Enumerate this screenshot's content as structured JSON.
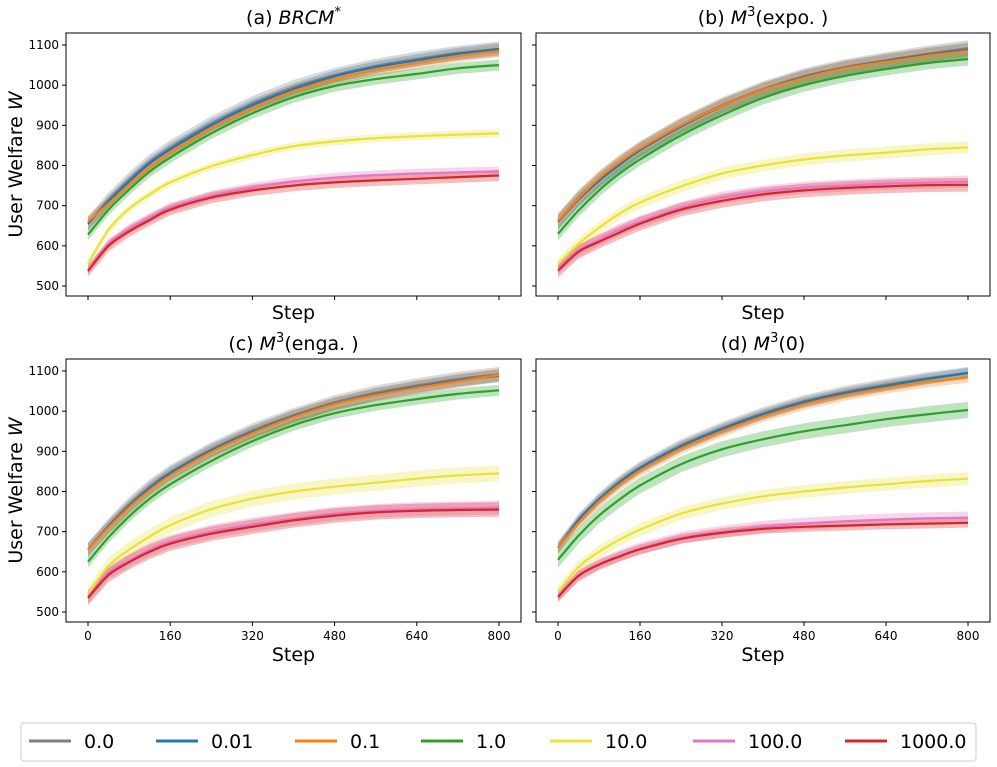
{
  "figure": {
    "ylabel": "User Welfare W",
    "xlabel": "Step"
  },
  "legend": {
    "entries": [
      {
        "label": "0.0",
        "color": "#808080"
      },
      {
        "label": "0.01",
        "color": "#1f77b4"
      },
      {
        "label": "0.1",
        "color": "#ff7f0e"
      },
      {
        "label": "1.0",
        "color": "#2ca02c"
      },
      {
        "label": "10.0",
        "color": "#e8e23a"
      },
      {
        "label": "100.0",
        "color": "#e377c2"
      },
      {
        "label": "1000.0",
        "color": "#d62728"
      }
    ]
  },
  "chart_data": [
    {
      "type": "line",
      "title_prefix": "(a) ",
      "title_italic": "BRCM",
      "title_sup": "*",
      "title_suffix": "",
      "xlabel": "Step",
      "ylabel": "User Welfare W",
      "xlim": [
        0,
        800
      ],
      "ylim": [
        500,
        1100
      ],
      "xticks": [
        0,
        160,
        320,
        480,
        640,
        800
      ],
      "yticks": [
        500,
        600,
        700,
        800,
        900,
        1000,
        1100
      ],
      "show_xtick_labels": false,
      "show_ytick_labels": true,
      "x": [
        0,
        40,
        80,
        120,
        160,
        240,
        320,
        400,
        480,
        560,
        640,
        720,
        800
      ],
      "series": [
        {
          "name": "0.0",
          "values": [
            655,
            715,
            765,
            810,
            845,
            905,
            955,
            995,
            1025,
            1048,
            1065,
            1080,
            1090
          ],
          "band": 18
        },
        {
          "name": "0.01",
          "values": [
            655,
            710,
            760,
            805,
            840,
            900,
            950,
            990,
            1022,
            1045,
            1062,
            1078,
            1090
          ],
          "band": 15
        },
        {
          "name": "0.1",
          "values": [
            660,
            705,
            752,
            795,
            832,
            893,
            943,
            985,
            1015,
            1038,
            1055,
            1072,
            1085
          ],
          "band": 15
        },
        {
          "name": "1.0",
          "values": [
            628,
            690,
            740,
            785,
            820,
            880,
            930,
            970,
            998,
            1015,
            1028,
            1042,
            1050
          ],
          "band": 14
        },
        {
          "name": "10.0",
          "values": [
            555,
            640,
            692,
            728,
            758,
            798,
            826,
            848,
            860,
            868,
            873,
            877,
            880
          ],
          "band": 10
        },
        {
          "name": "100.0",
          "values": [
            540,
            605,
            642,
            670,
            695,
            725,
            745,
            760,
            770,
            776,
            780,
            783,
            785
          ],
          "band": 12
        },
        {
          "name": "1000.0",
          "values": [
            537,
            600,
            636,
            664,
            690,
            720,
            738,
            750,
            758,
            763,
            767,
            771,
            775
          ],
          "band": 14
        }
      ]
    },
    {
      "type": "line",
      "title_prefix": "(b) ",
      "title_italic": "M",
      "title_sup": "3",
      "title_suffix": "(expo. )",
      "xlabel": "Step",
      "ylabel": "",
      "xlim": [
        0,
        800
      ],
      "ylim": [
        500,
        1100
      ],
      "xticks": [
        0,
        160,
        320,
        480,
        640,
        800
      ],
      "yticks": [
        500,
        600,
        700,
        800,
        900,
        1000,
        1100
      ],
      "show_xtick_labels": false,
      "show_ytick_labels": false,
      "x": [
        0,
        40,
        80,
        120,
        160,
        240,
        320,
        400,
        480,
        560,
        640,
        720,
        800
      ],
      "series": [
        {
          "name": "0.0",
          "values": [
            660,
            720,
            765,
            805,
            840,
            900,
            950,
            990,
            1022,
            1045,
            1062,
            1078,
            1092
          ],
          "band": 20
        },
        {
          "name": "0.01",
          "values": [
            660,
            715,
            762,
            802,
            838,
            897,
            947,
            988,
            1020,
            1043,
            1060,
            1075,
            1088
          ],
          "band": 18
        },
        {
          "name": "0.1",
          "values": [
            662,
            718,
            768,
            808,
            842,
            900,
            948,
            988,
            1018,
            1042,
            1058,
            1073,
            1085
          ],
          "band": 18
        },
        {
          "name": "1.0",
          "values": [
            630,
            688,
            738,
            780,
            815,
            875,
            925,
            968,
            1000,
            1023,
            1040,
            1055,
            1065
          ],
          "band": 16
        },
        {
          "name": "10.0",
          "values": [
            555,
            605,
            645,
            680,
            708,
            748,
            780,
            800,
            815,
            825,
            832,
            840,
            845
          ],
          "band": 15
        },
        {
          "name": "100.0",
          "values": [
            545,
            588,
            615,
            640,
            660,
            695,
            720,
            735,
            745,
            750,
            755,
            757,
            760
          ],
          "band": 15
        },
        {
          "name": "1000.0",
          "values": [
            538,
            585,
            610,
            633,
            655,
            690,
            712,
            728,
            738,
            744,
            748,
            751,
            752
          ],
          "band": 17
        }
      ]
    },
    {
      "type": "line",
      "title_prefix": "(c) ",
      "title_italic": "M",
      "title_sup": "3",
      "title_suffix": "(enga. )",
      "xlabel": "Step",
      "ylabel": "User Welfare W",
      "xlim": [
        0,
        800
      ],
      "ylim": [
        500,
        1100
      ],
      "xticks": [
        0,
        160,
        320,
        480,
        640,
        800
      ],
      "yticks": [
        500,
        600,
        700,
        800,
        900,
        1000,
        1100
      ],
      "show_xtick_labels": true,
      "show_ytick_labels": true,
      "x": [
        0,
        40,
        80,
        120,
        160,
        240,
        320,
        400,
        480,
        560,
        640,
        720,
        800
      ],
      "series": [
        {
          "name": "0.0",
          "values": [
            655,
            715,
            768,
            812,
            848,
            905,
            952,
            990,
            1022,
            1046,
            1064,
            1080,
            1092
          ],
          "band": 18
        },
        {
          "name": "0.01",
          "values": [
            655,
            712,
            763,
            808,
            845,
            902,
            948,
            987,
            1018,
            1042,
            1060,
            1076,
            1088
          ],
          "band": 16
        },
        {
          "name": "0.1",
          "values": [
            655,
            710,
            760,
            803,
            840,
            898,
            945,
            985,
            1017,
            1040,
            1058,
            1074,
            1090
          ],
          "band": 16
        },
        {
          "name": "1.0",
          "values": [
            625,
            686,
            738,
            782,
            818,
            876,
            925,
            965,
            995,
            1015,
            1030,
            1043,
            1052
          ],
          "band": 14
        },
        {
          "name": "10.0",
          "values": [
            545,
            615,
            655,
            688,
            716,
            756,
            782,
            800,
            812,
            822,
            832,
            840,
            845
          ],
          "band": 20
        },
        {
          "name": "100.0",
          "values": [
            538,
            598,
            628,
            655,
            675,
            700,
            718,
            732,
            745,
            752,
            756,
            758,
            760
          ],
          "band": 17
        },
        {
          "name": "1000.0",
          "values": [
            535,
            592,
            624,
            650,
            670,
            695,
            712,
            728,
            740,
            748,
            752,
            754,
            755
          ],
          "band": 18
        }
      ]
    },
    {
      "type": "line",
      "title_prefix": "(d) ",
      "title_italic": "M",
      "title_sup": "3",
      "title_suffix": "(0)",
      "xlabel": "Step",
      "ylabel": "",
      "xlim": [
        0,
        800
      ],
      "ylim": [
        500,
        1100
      ],
      "xticks": [
        0,
        160,
        320,
        480,
        640,
        800
      ],
      "yticks": [
        500,
        600,
        700,
        800,
        900,
        1000,
        1100
      ],
      "show_xtick_labels": true,
      "show_ytick_labels": false,
      "x": [
        0,
        40,
        80,
        120,
        160,
        240,
        320,
        400,
        480,
        560,
        640,
        720,
        800
      ],
      "series": [
        {
          "name": "0.0",
          "values": [
            660,
            730,
            782,
            825,
            860,
            915,
            958,
            995,
            1025,
            1048,
            1066,
            1082,
            1095
          ],
          "band": 15
        },
        {
          "name": "0.01",
          "values": [
            660,
            728,
            780,
            822,
            858,
            912,
            955,
            992,
            1022,
            1045,
            1063,
            1080,
            1095
          ],
          "band": 13
        },
        {
          "name": "0.1",
          "values": [
            660,
            722,
            775,
            817,
            852,
            907,
            950,
            987,
            1017,
            1040,
            1058,
            1073,
            1085
          ],
          "band": 14
        },
        {
          "name": "1.0",
          "values": [
            630,
            690,
            740,
            780,
            815,
            868,
            905,
            930,
            950,
            965,
            980,
            992,
            1003
          ],
          "band": 20
        },
        {
          "name": "10.0",
          "values": [
            550,
            612,
            650,
            680,
            705,
            745,
            770,
            788,
            800,
            810,
            818,
            826,
            832
          ],
          "band": 16
        },
        {
          "name": "100.0",
          "values": [
            540,
            590,
            618,
            640,
            658,
            685,
            700,
            712,
            720,
            726,
            730,
            733,
            735
          ],
          "band": 15
        },
        {
          "name": "1000.0",
          "values": [
            537,
            590,
            618,
            638,
            656,
            682,
            697,
            707,
            712,
            715,
            718,
            720,
            722
          ],
          "band": 12
        }
      ]
    }
  ]
}
